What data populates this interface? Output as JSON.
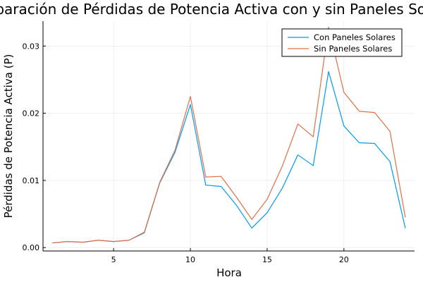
{
  "chart_data": {
    "type": "line",
    "title": "Comparación de Pérdidas de Potencia Activa con y sin Paneles Solares",
    "xlabel": "Hora",
    "ylabel": "Pérdidas de Potencia Activa (P)",
    "x": [
      1,
      2,
      3,
      4,
      5,
      6,
      7,
      8,
      9,
      10,
      11,
      12,
      13,
      14,
      15,
      16,
      17,
      18,
      19,
      20,
      21,
      22,
      23,
      24
    ],
    "xlim": [
      0.4,
      24.6
    ],
    "ylim": [
      -0.0005,
      0.0337
    ],
    "xticks": [
      5,
      10,
      15,
      20
    ],
    "xtick_labels": [
      "5",
      "10",
      "15",
      "20"
    ],
    "yticks": [
      0.0,
      0.01,
      0.02,
      0.03
    ],
    "ytick_labels": [
      "0.00",
      "0.01",
      "0.02",
      "0.03"
    ],
    "grid": true,
    "legend_position": "top-right",
    "series": [
      {
        "name": "Con Paneles Solares",
        "color": "#009AFA",
        "values": [
          0.0007,
          0.0009,
          0.0008,
          0.0011,
          0.0009,
          0.0011,
          0.0022,
          0.0096,
          0.0142,
          0.0213,
          0.0093,
          0.0091,
          0.0063,
          0.0029,
          0.0052,
          0.0089,
          0.0138,
          0.0122,
          0.0262,
          0.0181,
          0.0156,
          0.0155,
          0.0128,
          0.0029
        ]
      },
      {
        "name": "Sin Paneles Solares",
        "color": "#E36F47",
        "values": [
          0.0007,
          0.0009,
          0.0008,
          0.0011,
          0.0009,
          0.0011,
          0.0023,
          0.0097,
          0.0145,
          0.0225,
          0.0105,
          0.0106,
          0.0075,
          0.0042,
          0.0072,
          0.0122,
          0.0184,
          0.0165,
          0.0328,
          0.0231,
          0.0203,
          0.0201,
          0.0173,
          0.0045
        ]
      }
    ]
  }
}
